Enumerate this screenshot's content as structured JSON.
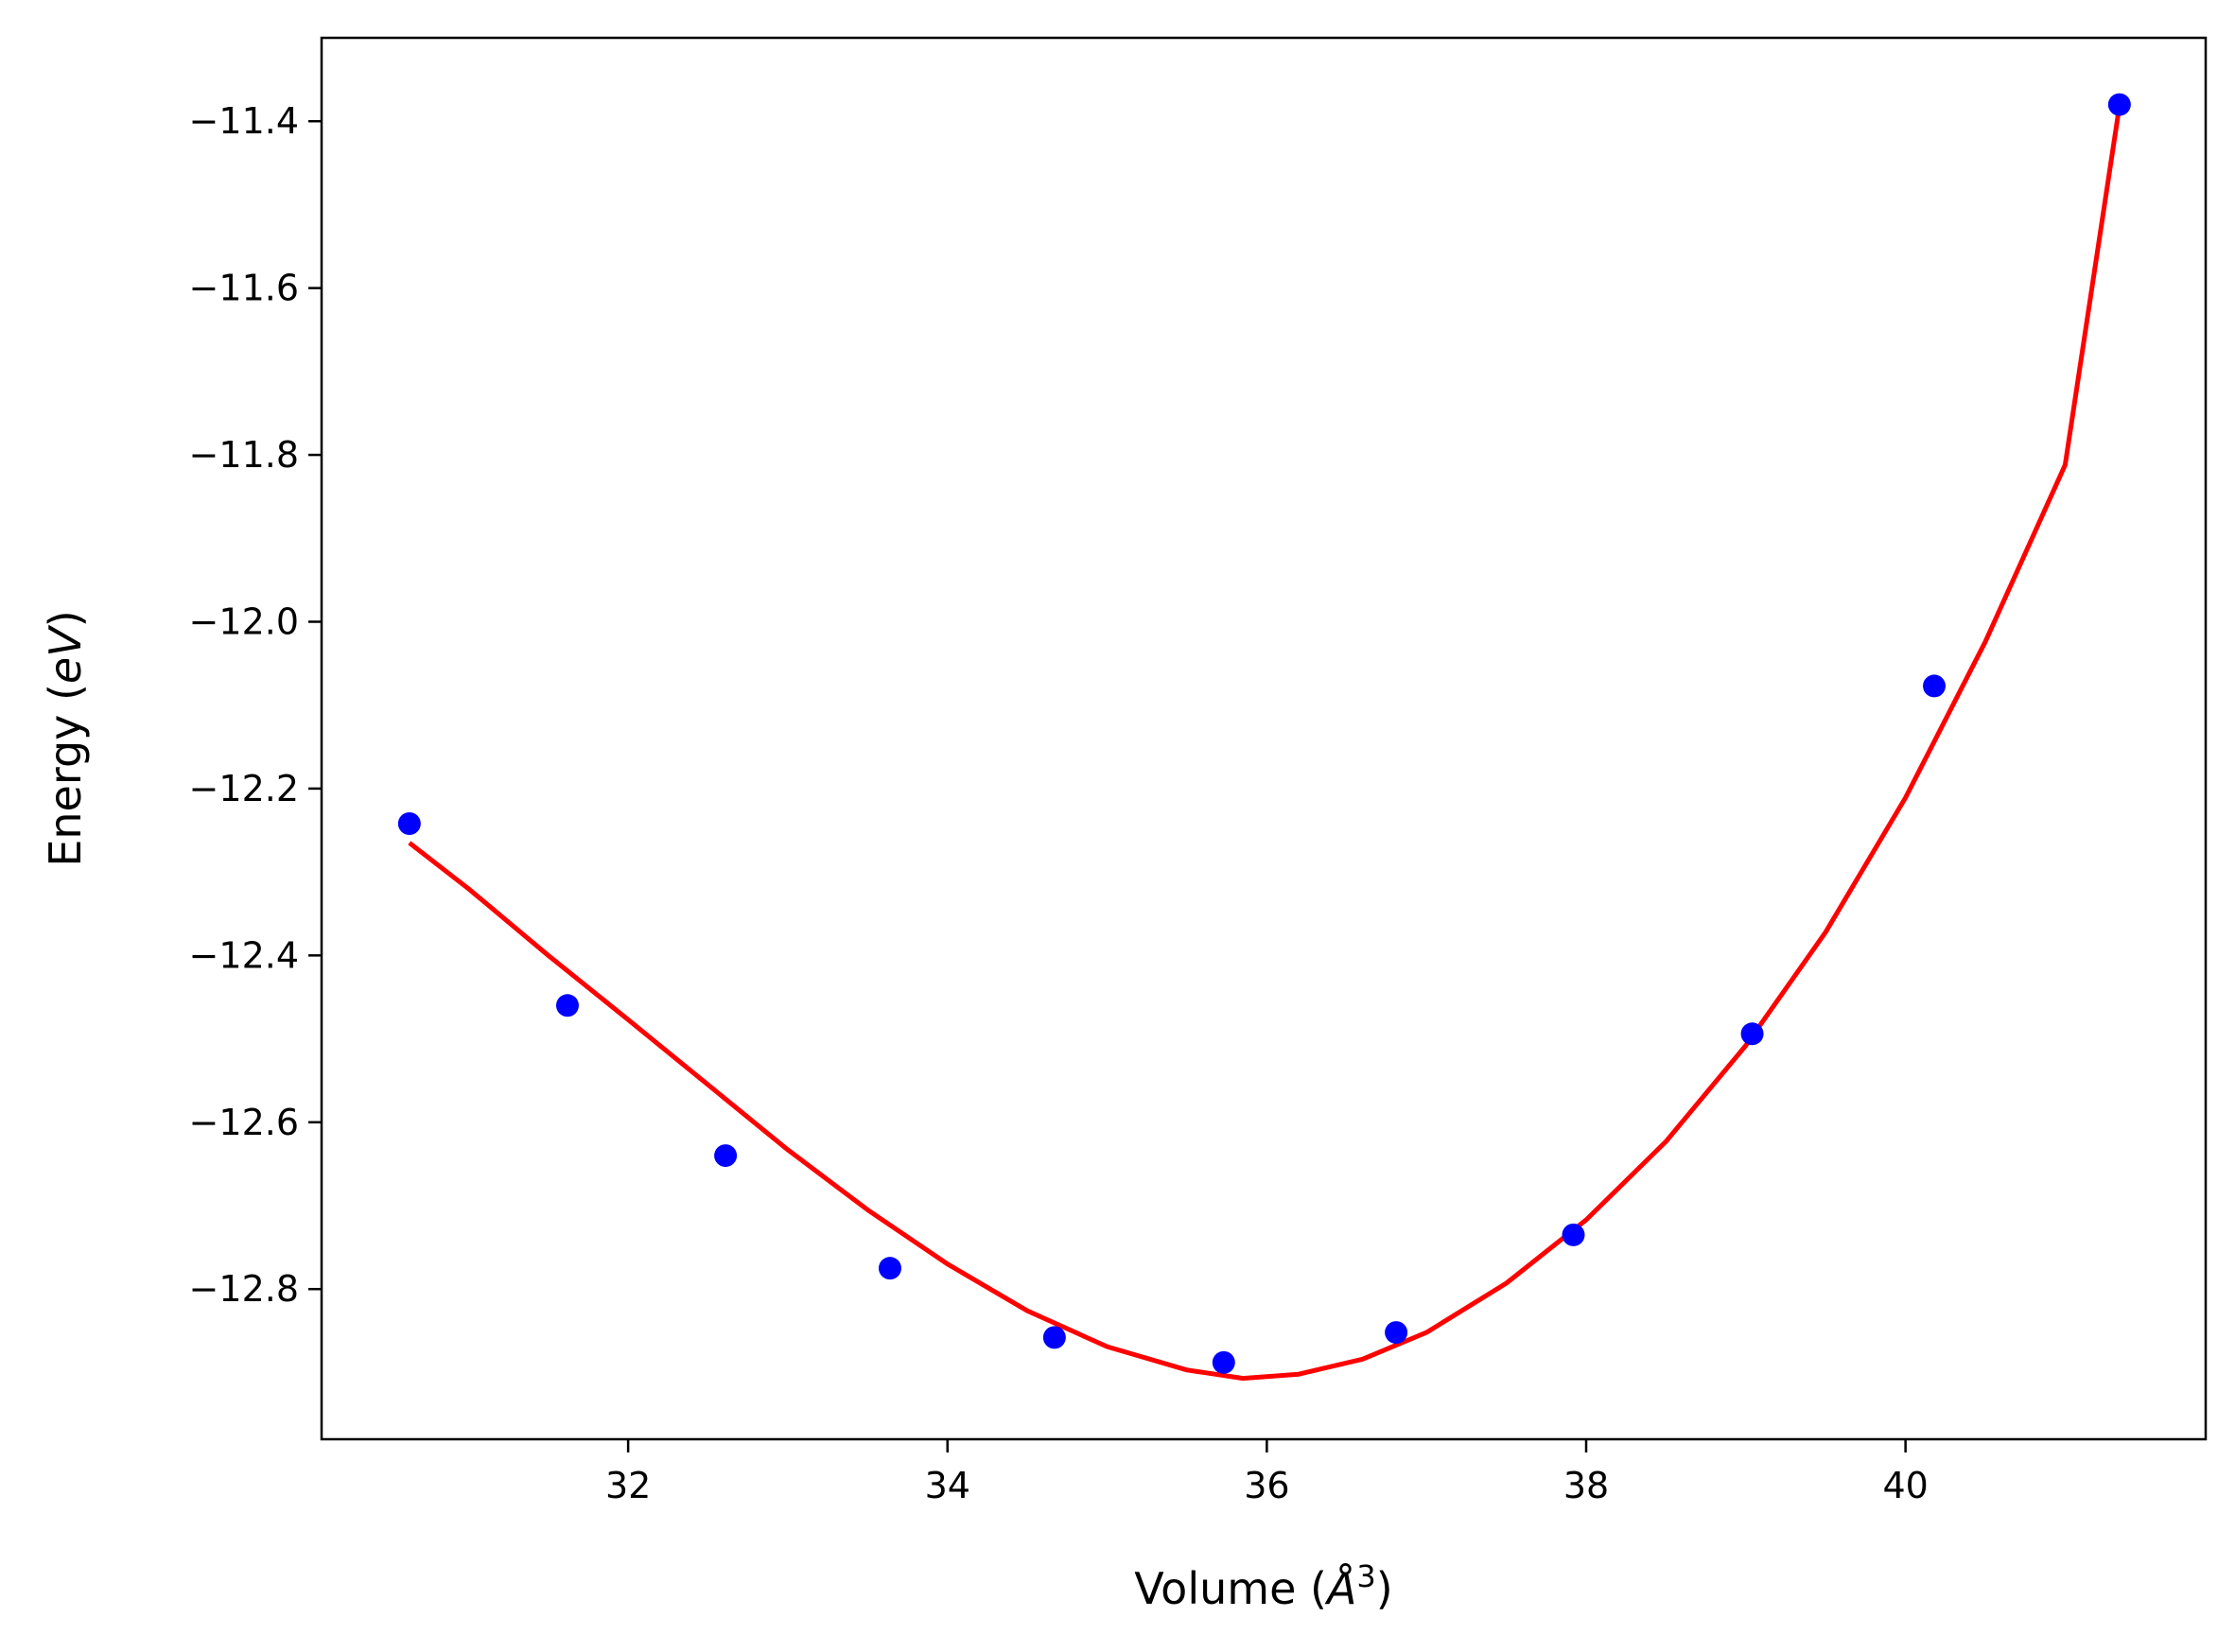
{
  "chart_data": {
    "type": "scatter",
    "title": "",
    "xlabel": "Volume ($\\AA^3$)",
    "xlabel_parts": {
      "prefix": "Volume (",
      "symbol": "Å",
      "superscript": "3",
      "suffix": ")"
    },
    "ylabel": "Energy ($eV$)",
    "ylabel_parts": {
      "prefix": "Energy (",
      "italic": "eV",
      "suffix": ")"
    },
    "xlim": [
      30.08,
      41.88
    ],
    "ylim": [
      -12.98,
      -11.3
    ],
    "xticks": [
      32,
      34,
      36,
      38,
      40
    ],
    "xtick_labels": [
      "32",
      "34",
      "36",
      "38",
      "40"
    ],
    "yticks": [
      -11.4,
      -11.6,
      -11.8,
      -12.0,
      -12.2,
      -12.4,
      -12.6,
      -12.8
    ],
    "ytick_labels": [
      "−11.4",
      "−11.6",
      "−11.8",
      "−12.0",
      "−12.2",
      "−12.4",
      "−12.6",
      "−12.8"
    ],
    "grid": false,
    "series": [
      {
        "kind": "points",
        "color": "#0000ff",
        "x": [
          30.63,
          31.62,
          32.61,
          33.64,
          34.67,
          35.73,
          36.81,
          37.92,
          39.04,
          40.18,
          41.34
        ],
        "y": [
          -12.242,
          -12.46,
          -12.64,
          -12.775,
          -12.858,
          -12.888,
          -12.852,
          -12.735,
          -12.494,
          -12.077,
          -11.38
        ]
      },
      {
        "kind": "fit-line",
        "color": "#ff0000",
        "x": [
          30.63,
          31.0,
          31.5,
          32.0,
          32.5,
          33.0,
          33.5,
          34.0,
          34.5,
          35.0,
          35.5,
          35.85,
          36.2,
          36.6,
          37.0,
          37.5,
          38.0,
          38.5,
          39.0,
          39.5,
          40.0,
          40.5,
          41.0,
          41.34
        ],
        "y": [
          -12.265,
          -12.32,
          -12.4,
          -12.477,
          -12.555,
          -12.633,
          -12.705,
          -12.77,
          -12.826,
          -12.869,
          -12.897,
          -12.907,
          -12.902,
          -12.884,
          -12.852,
          -12.793,
          -12.717,
          -12.623,
          -12.508,
          -12.372,
          -12.211,
          -12.024,
          -11.812,
          -11.382
        ]
      }
    ]
  }
}
